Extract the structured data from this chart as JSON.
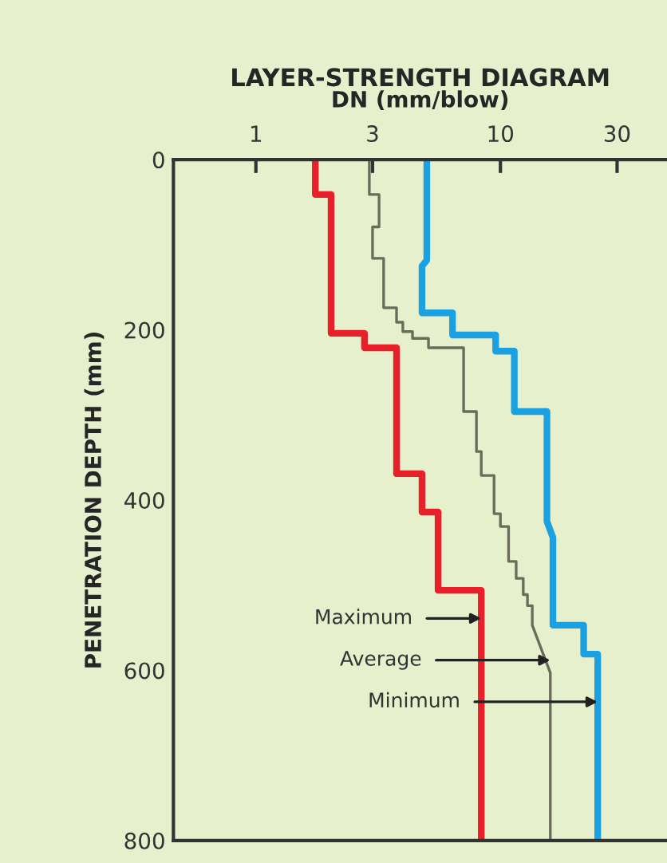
{
  "chart_data": {
    "type": "line",
    "title": "LAYER-STRENGTH DIAGRAM",
    "xlabel": "DN (mm/blow)",
    "ylabel": "PENETRATION DEPTH (mm)",
    "log": "x",
    "xlim": [
      0.46,
      48
    ],
    "xticks": [
      1,
      3,
      10,
      30
    ],
    "ylim": [
      800,
      0
    ],
    "yticks": [
      0,
      200,
      400,
      600,
      800
    ],
    "grid": false,
    "legend": false,
    "marker": "none",
    "line_style": "solid",
    "series": [
      {
        "color": "#e8202a",
        "x": [
          1.75,
          1.75,
          2.03,
          2.03,
          2.78,
          2.78,
          3.76,
          3.76,
          4.78,
          4.78,
          5.56,
          5.56,
          8.35,
          8.35
        ],
        "values": [
          0,
          41,
          41,
          204,
          204,
          221,
          221,
          369,
          369,
          414,
          414,
          506,
          506,
          800
        ]
      },
      {
        "color": "#6b6b5b",
        "x": [
          2.91,
          2.91,
          3.19,
          3.19,
          3.0,
          3.0,
          3.33,
          3.33,
          3.76,
          3.76,
          3.99,
          3.99,
          4.37,
          4.37,
          5.08,
          5.08,
          7.07,
          7.07,
          7.98,
          7.98,
          8.35,
          8.35,
          9.42,
          9.42,
          10,
          10,
          10.8,
          10.8,
          11.6,
          11.6,
          12.4,
          12.4,
          12.9,
          12.9,
          13.5,
          13.5,
          16.0,
          16.0
        ],
        "values": [
          0,
          41,
          41,
          79,
          79,
          116,
          116,
          174,
          174,
          191,
          191,
          202,
          202,
          210,
          210,
          221,
          221,
          296,
          296,
          343,
          343,
          371,
          371,
          416,
          416,
          431,
          431,
          472,
          472,
          492,
          492,
          511,
          511,
          524,
          524,
          547,
          603,
          800
        ]
      },
      {
        "color": "#1ba1e2",
        "x": [
          5.0,
          5.0,
          4.78,
          4.78,
          6.37,
          6.37,
          9.56,
          9.56,
          11.4,
          11.4,
          15.5,
          15.5,
          16.4,
          16.4,
          21.9,
          21.9,
          25.0,
          25.0
        ],
        "values": [
          0,
          118,
          125,
          180,
          180,
          206,
          206,
          225,
          225,
          296,
          296,
          425,
          444,
          547,
          547,
          581,
          581,
          800
        ]
      }
    ],
    "annotations": [
      {
        "text": "Maximum",
        "x": 8.35,
        "y": 539
      },
      {
        "text": "Average",
        "x": 16.0,
        "y": 588
      },
      {
        "text": "Minimum",
        "x": 25.0,
        "y": 637
      }
    ]
  }
}
